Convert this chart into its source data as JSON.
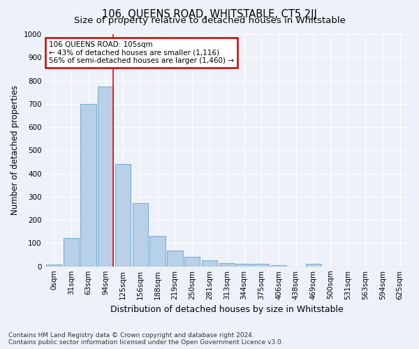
{
  "title": "106, QUEENS ROAD, WHITSTABLE, CT5 2JJ",
  "subtitle": "Size of property relative to detached houses in Whitstable",
  "xlabel": "Distribution of detached houses by size in Whitstable",
  "ylabel": "Number of detached properties",
  "footer_line1": "Contains HM Land Registry data © Crown copyright and database right 2024.",
  "footer_line2": "Contains public sector information licensed under the Open Government Licence v3.0.",
  "categories": [
    "0sqm",
    "31sqm",
    "63sqm",
    "94sqm",
    "125sqm",
    "156sqm",
    "188sqm",
    "219sqm",
    "250sqm",
    "281sqm",
    "313sqm",
    "344sqm",
    "375sqm",
    "406sqm",
    "438sqm",
    "469sqm",
    "500sqm",
    "531sqm",
    "563sqm",
    "594sqm",
    "625sqm"
  ],
  "values": [
    8,
    122,
    700,
    775,
    440,
    272,
    132,
    68,
    40,
    26,
    14,
    12,
    10,
    5,
    0,
    12,
    0,
    0,
    0,
    0,
    0
  ],
  "bar_color": "#b8d0e8",
  "bar_edge_color": "#7aafd4",
  "property_line_x": 3.43,
  "annotation_text": "106 QUEENS ROAD: 105sqm\n← 43% of detached houses are smaller (1,116)\n56% of semi-detached houses are larger (1,460) →",
  "annotation_box_color": "#ffffff",
  "annotation_box_edge_color": "#cc0000",
  "ylim": [
    0,
    1000
  ],
  "yticks": [
    0,
    100,
    200,
    300,
    400,
    500,
    600,
    700,
    800,
    900,
    1000
  ],
  "background_color": "#eef2f8",
  "grid_color": "#ffffff",
  "title_fontsize": 10.5,
  "subtitle_fontsize": 9.5,
  "xlabel_fontsize": 9,
  "ylabel_fontsize": 8.5,
  "tick_fontsize": 7.5,
  "footer_fontsize": 6.5
}
